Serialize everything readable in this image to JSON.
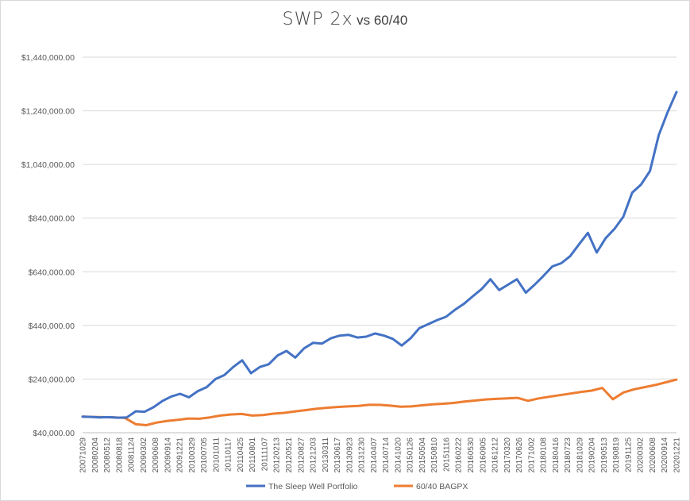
{
  "chart_data": {
    "type": "line",
    "title": "SWP 2x",
    "title_suffix": "vs 60/40",
    "xlabel": "",
    "ylabel": "",
    "ylim": [
      40000,
      1440000
    ],
    "y_ticks": [
      "$40,000.00",
      "$240,000.00",
      "$440,000.00",
      "$640,000.00",
      "$840,000.00",
      "$1,040,000.00",
      "$1,240,000.00",
      "$1,440,000.00"
    ],
    "x_ticks": [
      "20071029",
      "20080204",
      "20080512",
      "20080818",
      "20081124",
      "20090302",
      "20090608",
      "20090914",
      "20091221",
      "20100329",
      "20100705",
      "20101011",
      "20110117",
      "20110425",
      "20110801",
      "20111107",
      "20120213",
      "20120521",
      "20120827",
      "20121203",
      "20130311",
      "20130617",
      "20130923",
      "20131230",
      "20140407",
      "20140714",
      "20141020",
      "20150126",
      "20150504",
      "20150810",
      "20151116",
      "20160222",
      "20160530",
      "20160905",
      "20161212",
      "20170320",
      "20170626",
      "20171002",
      "20180108",
      "20180416",
      "20180723",
      "20181029",
      "20190204",
      "20190513",
      "20190819",
      "20191125",
      "20200302",
      "20200608",
      "20200914",
      "20201221"
    ],
    "grid": true,
    "legend_position": "bottom",
    "series": [
      {
        "name": "The Sleep Well Portfolio",
        "color": "#4472c4",
        "values": [
          100000,
          99000,
          97000,
          98000,
          96000,
          97000,
          120000,
          118000,
          135000,
          158000,
          175000,
          185000,
          172000,
          195000,
          210000,
          240000,
          255000,
          285000,
          310000,
          262000,
          285000,
          295000,
          328000,
          345000,
          320000,
          355000,
          375000,
          372000,
          392000,
          402000,
          405000,
          395000,
          398000,
          410000,
          402000,
          390000,
          365000,
          392000,
          430000,
          445000,
          460000,
          472000,
          498000,
          520000,
          548000,
          575000,
          612000,
          572000,
          592000,
          612000,
          562000,
          592000,
          625000,
          660000,
          672000,
          698000,
          742000,
          785000,
          712000,
          765000,
          800000,
          845000,
          935000,
          965000,
          1015000,
          1150000,
          1235000,
          1310000
        ]
      },
      {
        "name": "60/40 BAGPX",
        "color": "#ed7d31",
        "values": [
          100000,
          99000,
          98000,
          97000,
          95000,
          72000,
          68000,
          78000,
          84000,
          88000,
          93000,
          92000,
          97000,
          104000,
          108000,
          110000,
          104000,
          106000,
          111000,
          114000,
          119000,
          124000,
          129000,
          133000,
          136000,
          138000,
          140000,
          144000,
          144000,
          141000,
          137000,
          138000,
          142000,
          146000,
          148000,
          151000,
          156000,
          160000,
          164000,
          166000,
          168000,
          170000,
          159000,
          168000,
          174000,
          180000,
          186000,
          192000,
          197000,
          207000,
          165000,
          190000,
          202000,
          210000,
          218000,
          228000,
          238000
        ]
      }
    ]
  }
}
